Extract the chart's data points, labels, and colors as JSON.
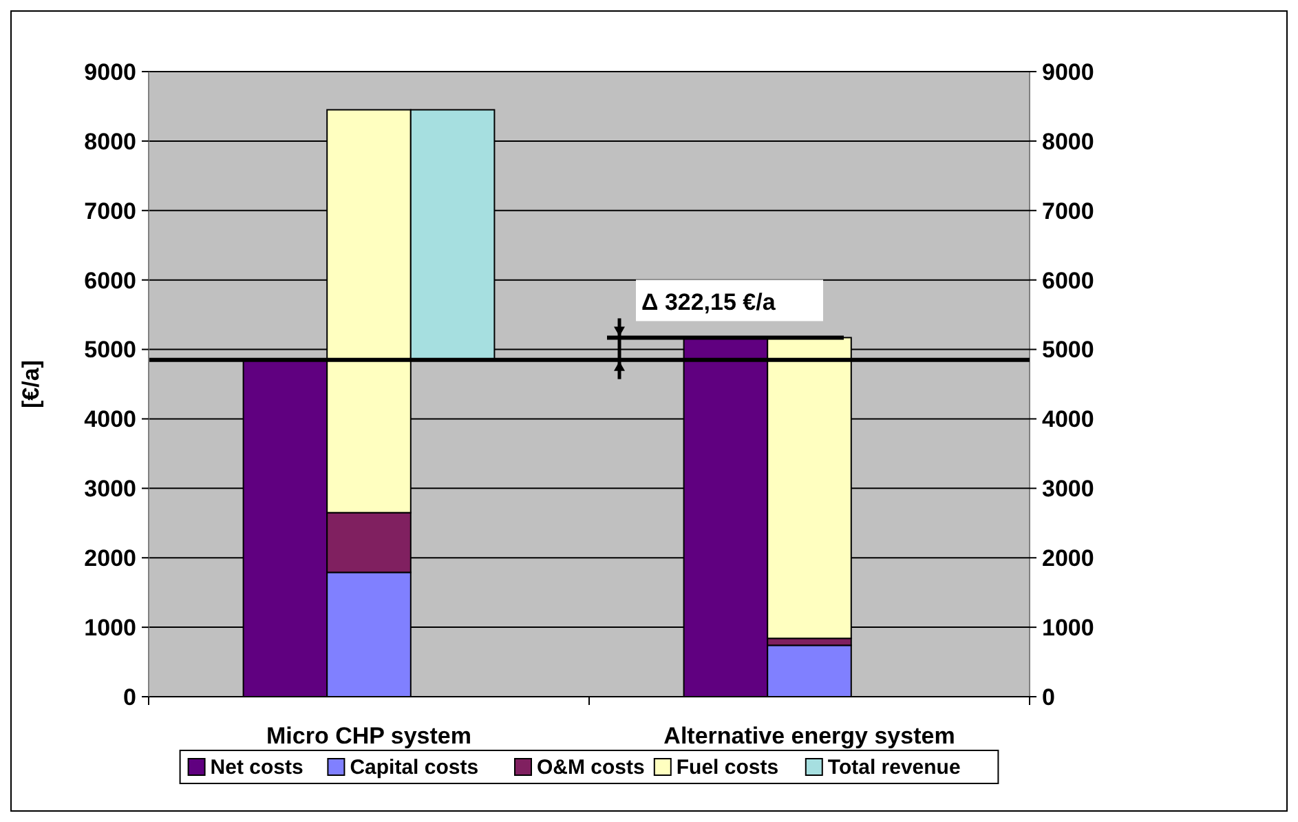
{
  "chart_data": {
    "type": "bar",
    "ylabel": "[€/a]",
    "categories": [
      "Micro CHP system",
      "Alternative energy system"
    ],
    "series": [
      {
        "name": "Net costs",
        "color": "#600080",
        "values": [
          4850,
          5170
        ],
        "base": [
          0,
          0
        ]
      },
      {
        "name": "Capital costs",
        "color": "#8080ff",
        "values": [
          1790,
          740
        ],
        "base": [
          0,
          0
        ]
      },
      {
        "name": "O&M costs",
        "color": "#802060",
        "values": [
          860,
          100
        ],
        "base": [
          1790,
          740
        ]
      },
      {
        "name": "Fuel costs",
        "color": "#ffffc0",
        "values": [
          5800,
          4330
        ],
        "base": [
          2650,
          840
        ]
      },
      {
        "name": "Total revenue",
        "color": "#a6dfe0",
        "values": [
          3600,
          null
        ],
        "base": [
          4850,
          null
        ]
      }
    ],
    "ylim": [
      0,
      9000
    ],
    "yticks": [
      0,
      1000,
      2000,
      3000,
      4000,
      5000,
      6000,
      7000,
      8000,
      9000
    ],
    "y2lim": [
      0,
      9000
    ],
    "y2ticks": [
      0,
      1000,
      2000,
      3000,
      4000,
      5000,
      6000,
      7000,
      8000,
      9000
    ],
    "ref_lines": [
      {
        "axis": "y",
        "value": 4850
      }
    ],
    "annotations": [
      {
        "text": "Δ 322,15 €/a",
        "y": 5170
      }
    ],
    "grid": "y",
    "legend": "bottom"
  }
}
